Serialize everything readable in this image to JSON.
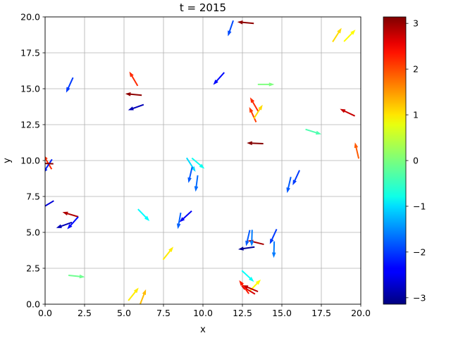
{
  "chart_data": {
    "type": "quiver",
    "title": "t = 2015",
    "xlabel": "x",
    "ylabel": "y",
    "xlim": [
      0,
      20
    ],
    "ylim": [
      0,
      20
    ],
    "grid": true,
    "colormap": "jet",
    "colorbar": {
      "range": [
        -3.1416,
        3.1416
      ],
      "ticks": [
        -3,
        -2,
        -1,
        0,
        1,
        2,
        3
      ],
      "tick_labels": [
        "−3",
        "−2",
        "−1",
        "0",
        "1",
        "2",
        "3"
      ]
    },
    "x_ticks": [
      0,
      2.5,
      5,
      7.5,
      10,
      12.5,
      15,
      17.5,
      20
    ],
    "x_tick_labels": [
      "0.0",
      "2.5",
      "5.0",
      "7.5",
      "10.0",
      "12.5",
      "15.0",
      "17.5",
      "20.0"
    ],
    "y_ticks": [
      0,
      2.5,
      5,
      7.5,
      10,
      12.5,
      15,
      17.5,
      20
    ],
    "y_tick_labels": [
      "0.0",
      "2.5",
      "5.0",
      "7.5",
      "10.0",
      "12.5",
      "15.0",
      "17.5",
      "20.0"
    ],
    "arrow_length": 1.05,
    "arrows": [
      {
        "x": 12.7,
        "y": 19.6,
        "angle": 3.05
      },
      {
        "x": 11.75,
        "y": 19.2,
        "angle": -1.9
      },
      {
        "x": 18.5,
        "y": 18.75,
        "angle": 1.0
      },
      {
        "x": 19.3,
        "y": 18.7,
        "angle": 0.8
      },
      {
        "x": 1.55,
        "y": 15.25,
        "angle": -2.0
      },
      {
        "x": 5.6,
        "y": 15.7,
        "angle": 2.1
      },
      {
        "x": 5.6,
        "y": 14.6,
        "angle": 3.05
      },
      {
        "x": 5.75,
        "y": 13.7,
        "angle": -2.8
      },
      {
        "x": 11.0,
        "y": 15.7,
        "angle": -2.3
      },
      {
        "x": 14.0,
        "y": 15.3,
        "angle": 0.0
      },
      {
        "x": 13.25,
        "y": 13.9,
        "angle": 2.1
      },
      {
        "x": 13.15,
        "y": 13.2,
        "angle": 2.0
      },
      {
        "x": 13.5,
        "y": 13.4,
        "angle": 1.0
      },
      {
        "x": 19.15,
        "y": 13.35,
        "angle": 2.7
      },
      {
        "x": 17.0,
        "y": 12.0,
        "angle": -0.3
      },
      {
        "x": 13.3,
        "y": 11.2,
        "angle": 3.1
      },
      {
        "x": 19.75,
        "y": 10.7,
        "angle": 1.8
      },
      {
        "x": 0.15,
        "y": 9.9,
        "angle": 2.1
      },
      {
        "x": 0.15,
        "y": 9.6,
        "angle": -2.15
      },
      {
        "x": 0.0,
        "y": 9.8,
        "angle": 3.1
      },
      {
        "x": 9.25,
        "y": 9.7,
        "angle": -1.0
      },
      {
        "x": 9.7,
        "y": 9.8,
        "angle": -0.7
      },
      {
        "x": 9.2,
        "y": 9.0,
        "angle": -1.8
      },
      {
        "x": 9.6,
        "y": 8.4,
        "angle": -1.7
      },
      {
        "x": 15.45,
        "y": 8.3,
        "angle": -1.8
      },
      {
        "x": 15.9,
        "y": 8.8,
        "angle": -2.0
      },
      {
        "x": 0.1,
        "y": 6.9,
        "angle": -2.6
      },
      {
        "x": 1.6,
        "y": 6.25,
        "angle": 2.85
      },
      {
        "x": 1.75,
        "y": 5.65,
        "angle": -2.3
      },
      {
        "x": 1.2,
        "y": 5.5,
        "angle": -2.8
      },
      {
        "x": 6.25,
        "y": 6.2,
        "angle": -0.8
      },
      {
        "x": 8.5,
        "y": 5.8,
        "angle": -1.75
      },
      {
        "x": 8.9,
        "y": 6.1,
        "angle": -2.4
      },
      {
        "x": 12.85,
        "y": 4.6,
        "angle": -1.8
      },
      {
        "x": 13.35,
        "y": 4.3,
        "angle": 2.9
      },
      {
        "x": 13.1,
        "y": 4.6,
        "angle": -1.6
      },
      {
        "x": 12.75,
        "y": 3.9,
        "angle": -3.0
      },
      {
        "x": 14.45,
        "y": 4.7,
        "angle": -2.0
      },
      {
        "x": 14.5,
        "y": 3.8,
        "angle": -1.6
      },
      {
        "x": 7.8,
        "y": 3.55,
        "angle": 0.9
      },
      {
        "x": 2.0,
        "y": 1.95,
        "angle": -0.1
      },
      {
        "x": 12.85,
        "y": 1.95,
        "angle": -0.75
      },
      {
        "x": 13.3,
        "y": 1.3,
        "angle": 0.8
      },
      {
        "x": 12.85,
        "y": 1.0,
        "angle": 2.6
      },
      {
        "x": 13.0,
        "y": 1.1,
        "angle": 2.75
      },
      {
        "x": 12.6,
        "y": 1.2,
        "angle": 2.2
      },
      {
        "x": 5.6,
        "y": 0.7,
        "angle": 0.9
      },
      {
        "x": 6.2,
        "y": 0.5,
        "angle": 1.2
      }
    ]
  }
}
